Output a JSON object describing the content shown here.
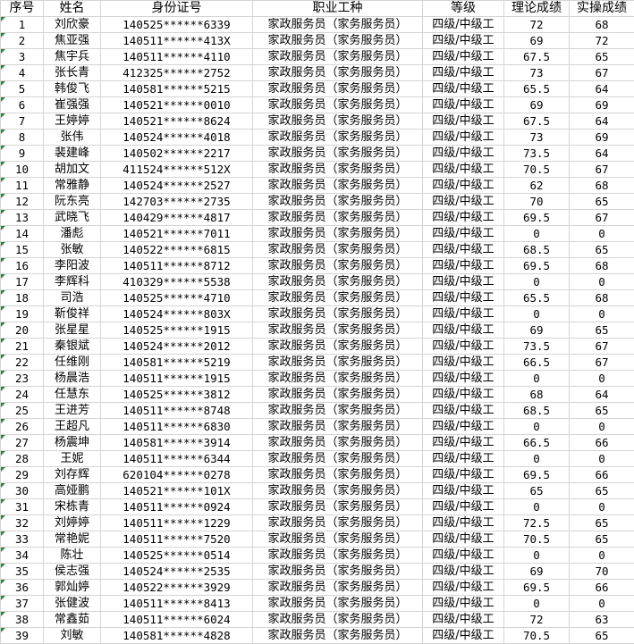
{
  "headers": [
    "序号",
    "姓名",
    "身份证号",
    "职业工种",
    "等级",
    "理论成绩",
    "实操成绩"
  ],
  "indicator_color": "#1e8a2e",
  "rows": [
    [
      "1",
      "刘欣豪",
      "140525******6339",
      "家政服务员（家务服务员）",
      "四级/中级工",
      "72",
      "68"
    ],
    [
      "2",
      "焦亚强",
      "140511******413X",
      "家政服务员（家务服务员）",
      "四级/中级工",
      "69",
      "72"
    ],
    [
      "3",
      "焦宇兵",
      "140511******4110",
      "家政服务员（家务服务员）",
      "四级/中级工",
      "67.5",
      "65"
    ],
    [
      "4",
      "张长青",
      "412325******2752",
      "家政服务员（家务服务员）",
      "四级/中级工",
      "73",
      "67"
    ],
    [
      "5",
      "韩俊飞",
      "140581******5215",
      "家政服务员（家务服务员）",
      "四级/中级工",
      "65.5",
      "64"
    ],
    [
      "6",
      "崔强强",
      "140521******0010",
      "家政服务员（家务服务员）",
      "四级/中级工",
      "69",
      "69"
    ],
    [
      "7",
      "王婷婷",
      "140521******8624",
      "家政服务员（家务服务员）",
      "四级/中级工",
      "67.5",
      "64"
    ],
    [
      "8",
      "张伟",
      "140524******4018",
      "家政服务员（家务服务员）",
      "四级/中级工",
      "73",
      "69"
    ],
    [
      "9",
      "裴建峰",
      "140502******2217",
      "家政服务员（家务服务员）",
      "四级/中级工",
      "73.5",
      "64"
    ],
    [
      "10",
      "胡加文",
      "411524******512X",
      "家政服务员（家务服务员）",
      "四级/中级工",
      "70.5",
      "67"
    ],
    [
      "11",
      "常雅静",
      "140524******2527",
      "家政服务员（家务服务员）",
      "四级/中级工",
      "62",
      "68"
    ],
    [
      "12",
      "阮东亮",
      "142703******2735",
      "家政服务员（家务服务员）",
      "四级/中级工",
      "70",
      "65"
    ],
    [
      "13",
      "武晓飞",
      "140429******4817",
      "家政服务员（家务服务员）",
      "四级/中级工",
      "69.5",
      "67"
    ],
    [
      "14",
      "潘彪",
      "140521******7011",
      "家政服务员（家务服务员）",
      "四级/中级工",
      "0",
      "0"
    ],
    [
      "15",
      "张敏",
      "140522******6815",
      "家政服务员（家务服务员）",
      "四级/中级工",
      "68.5",
      "65"
    ],
    [
      "16",
      "李阳波",
      "140511******8712",
      "家政服务员（家务服务员）",
      "四级/中级工",
      "69.5",
      "68"
    ],
    [
      "17",
      "李辉科",
      "410329******5538",
      "家政服务员（家务服务员）",
      "四级/中级工",
      "0",
      "0"
    ],
    [
      "18",
      "司浩",
      "140525******4710",
      "家政服务员（家务服务员）",
      "四级/中级工",
      "65.5",
      "68"
    ],
    [
      "19",
      "靳俊祥",
      "140524******803X",
      "家政服务员（家务服务员）",
      "四级/中级工",
      "0",
      "0"
    ],
    [
      "20",
      "张星星",
      "140525******1915",
      "家政服务员（家务服务员）",
      "四级/中级工",
      "69",
      "65"
    ],
    [
      "21",
      "秦银斌",
      "140524******2012",
      "家政服务员（家务服务员）",
      "四级/中级工",
      "73.5",
      "67"
    ],
    [
      "22",
      "任维刚",
      "140581******5219",
      "家政服务员（家务服务员）",
      "四级/中级工",
      "66.5",
      "67"
    ],
    [
      "23",
      "杨晨浩",
      "140511******1915",
      "家政服务员（家务服务员）",
      "四级/中级工",
      "0",
      "0"
    ],
    [
      "24",
      "任慧东",
      "140525******3812",
      "家政服务员（家务服务员）",
      "四级/中级工",
      "68",
      "64"
    ],
    [
      "25",
      "王进芳",
      "140511******8748",
      "家政服务员（家务服务员）",
      "四级/中级工",
      "68.5",
      "65"
    ],
    [
      "26",
      "王超凡",
      "140511******6830",
      "家政服务员（家务服务员）",
      "四级/中级工",
      "0",
      "0"
    ],
    [
      "27",
      "杨震坤",
      "140581******3914",
      "家政服务员（家务服务员）",
      "四级/中级工",
      "66.5",
      "66"
    ],
    [
      "28",
      "王妮",
      "140511******6344",
      "家政服务员（家务服务员）",
      "四级/中级工",
      "0",
      "0"
    ],
    [
      "29",
      "刘存辉",
      "620104******0278",
      "家政服务员（家务服务员）",
      "四级/中级工",
      "69.5",
      "66"
    ],
    [
      "30",
      "高娅鹏",
      "140521******101X",
      "家政服务员（家务服务员）",
      "四级/中级工",
      "65",
      "65"
    ],
    [
      "31",
      "宋栋青",
      "140511******0924",
      "家政服务员（家务服务员）",
      "四级/中级工",
      "0",
      "0"
    ],
    [
      "32",
      "刘婷婷",
      "140511******1229",
      "家政服务员（家务服务员）",
      "四级/中级工",
      "72.5",
      "65"
    ],
    [
      "33",
      "常艳妮",
      "140511******7520",
      "家政服务员（家务服务员）",
      "四级/中级工",
      "70.5",
      "65"
    ],
    [
      "34",
      "陈壮",
      "140525******0514",
      "家政服务员（家务服务员）",
      "四级/中级工",
      "0",
      "0"
    ],
    [
      "35",
      "侯志强",
      "140524******2535",
      "家政服务员（家务服务员）",
      "四级/中级工",
      "69",
      "70"
    ],
    [
      "36",
      "郭灿婷",
      "140522******3929",
      "家政服务员（家务服务员）",
      "四级/中级工",
      "69.5",
      "66"
    ],
    [
      "37",
      "张健波",
      "140511******8413",
      "家政服务员（家务服务员）",
      "四级/中级工",
      "0",
      "0"
    ],
    [
      "38",
      "常鑫茹",
      "140511******6024",
      "家政服务员（家务服务员）",
      "四级/中级工",
      "72",
      "63"
    ],
    [
      "39",
      "刘敏",
      "140581******4828",
      "家政服务员（家务服务员）",
      "四级/中级工",
      "70.5",
      "65"
    ]
  ]
}
